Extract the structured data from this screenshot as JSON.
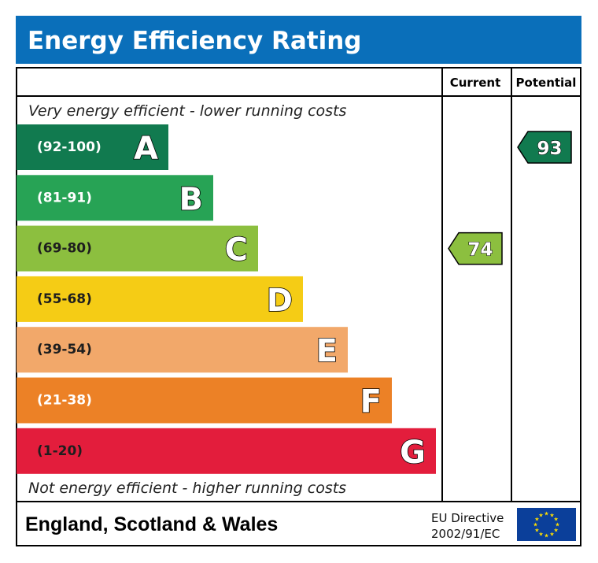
{
  "chart_data": {
    "type": "bar",
    "title": "Energy Efficiency Rating",
    "columns": {
      "current": "Current",
      "potential": "Potential"
    },
    "top_caption": "Very energy efficient - lower running costs",
    "bottom_caption": "Not energy efficient - higher running costs",
    "footer": {
      "region": "England, Scotland & Wales",
      "directive_line1": "EU Directive",
      "directive_line2": "2002/91/EC"
    },
    "bands": [
      {
        "letter": "A",
        "range": "(92-100)",
        "min": 92,
        "max": 100,
        "color": "#117a4f"
      },
      {
        "letter": "B",
        "range": "(81-91)",
        "min": 81,
        "max": 91,
        "color": "#27a355"
      },
      {
        "letter": "C",
        "range": "(69-80)",
        "min": 69,
        "max": 80,
        "color": "#8cbf3f"
      },
      {
        "letter": "D",
        "range": "(55-68)",
        "min": 55,
        "max": 68,
        "color": "#f5cc15"
      },
      {
        "letter": "E",
        "range": "(39-54)",
        "min": 39,
        "max": 54,
        "color": "#f2a86a"
      },
      {
        "letter": "F",
        "range": "(21-38)",
        "min": 21,
        "max": 38,
        "color": "#ec8126"
      },
      {
        "letter": "G",
        "range": "(1-20)",
        "min": 1,
        "max": 20,
        "color": "#e31d3c"
      }
    ],
    "ratings": {
      "current": {
        "value": 74,
        "band": "C"
      },
      "potential": {
        "value": 93,
        "band": "A"
      }
    },
    "colors": {
      "header": "#0a6fba",
      "border": "#000000",
      "eu_flag": "#0b3f9a",
      "eu_star": "#ffde00"
    }
  }
}
